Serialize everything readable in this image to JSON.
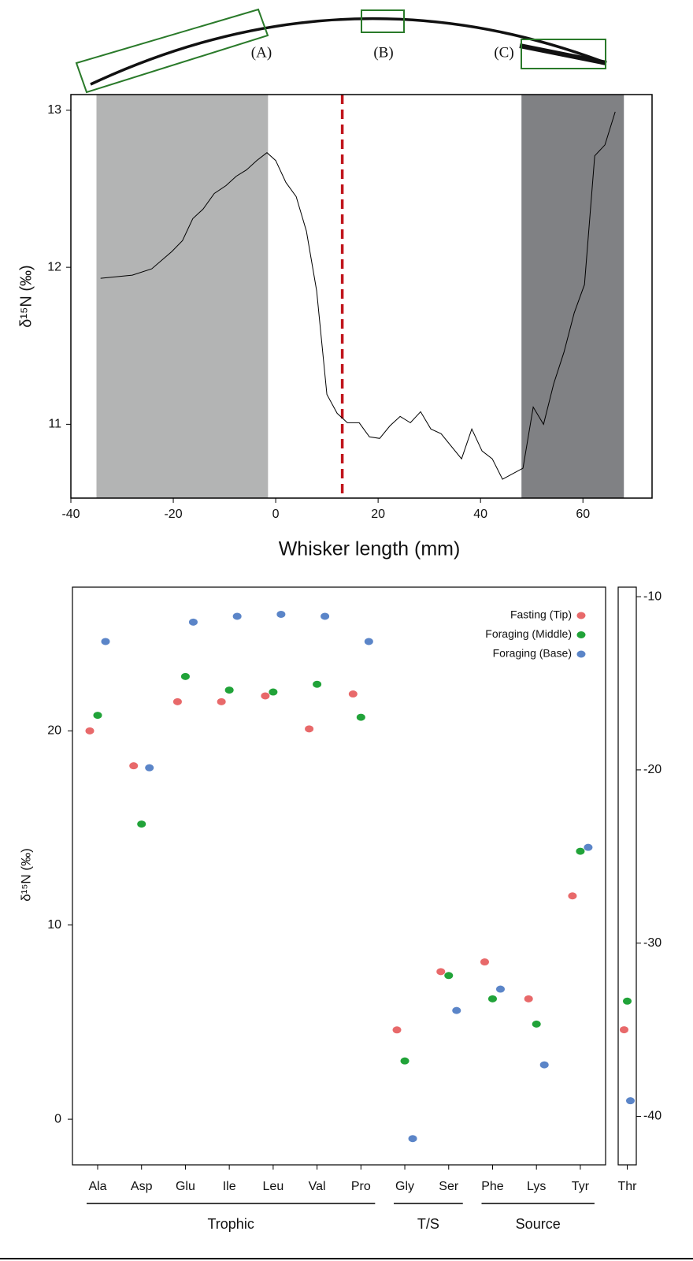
{
  "chart_data": [
    {
      "type": "line",
      "annotations": [
        "(A)",
        "(B)",
        "(C)"
      ],
      "xlabel": "Whisker length (mm)",
      "ylabel": "δ¹⁵N (‰)",
      "x": [
        -34.2,
        -28,
        -24.2,
        -20.3,
        -18.2,
        -16.2,
        -14.2,
        -12,
        -9.7,
        -7.7,
        -5.7,
        -3.7,
        -1.7,
        0,
        2,
        4,
        6,
        8,
        10,
        12,
        14,
        16.3,
        18.3,
        20.3,
        22.3,
        24.3,
        26.3,
        28.3,
        30.3,
        32.3,
        36.3,
        38.3,
        40.3,
        42.3,
        44.3,
        48.3,
        50.3,
        52.3,
        54.3,
        56.3,
        58.3,
        60.3,
        62.3,
        64.3,
        66.3
      ],
      "values": [
        11.93,
        11.95,
        11.99,
        12.1,
        12.17,
        12.31,
        12.37,
        12.47,
        12.52,
        12.58,
        12.62,
        12.68,
        12.73,
        12.68,
        12.54,
        12.45,
        12.23,
        11.85,
        11.19,
        11.07,
        11.01,
        11.01,
        10.92,
        10.91,
        10.99,
        11.05,
        11.01,
        11.08,
        10.97,
        10.94,
        10.78,
        10.97,
        10.83,
        10.78,
        10.65,
        10.72,
        11.11,
        11.0,
        11.26,
        11.46,
        11.71,
        11.89,
        12.71,
        12.78,
        12.99
      ],
      "color": "#000000",
      "xlim": [
        -40,
        73.5
      ],
      "xticks": [
        -40,
        -20,
        0,
        20,
        40,
        60
      ],
      "ylim": [
        10.53,
        13.1
      ],
      "yticks": [
        11,
        12,
        13
      ],
      "shaded_regions": [
        {
          "x": [
            -35,
            -1.5
          ],
          "color": "#b3b4b4"
        },
        {
          "x": [
            48,
            68
          ],
          "color": "#808184"
        }
      ],
      "reference_line": {
        "x": 13,
        "color": "#c0141b",
        "dashed": true
      }
    },
    {
      "type": "dot",
      "ylabel": "δ¹⁵N (‰)",
      "categories": [
        "Ala",
        "Asp",
        "Glu",
        "Ile",
        "Leu",
        "Val",
        "Pro",
        "Gly",
        "Ser",
        "Phe",
        "Lys",
        "Tyr",
        "Thr"
      ],
      "category_groups": [
        "Trophic",
        "Trophic",
        "Trophic",
        "Trophic",
        "Trophic",
        "Trophic",
        "Trophic",
        "T/S",
        "T/S",
        "Source",
        "Source",
        "Source",
        null
      ],
      "y2_categories": [
        "Thr"
      ],
      "series": [
        {
          "name": "Fasting (Tip)",
          "color": "#e8696a",
          "values": [
            20.0,
            18.2,
            21.5,
            21.5,
            21.8,
            20.1,
            21.9,
            4.6,
            7.6,
            8.1,
            6.2,
            11.5,
            -35.0
          ]
        },
        {
          "name": "Foraging (Middle)",
          "color": "#21a339",
          "values": [
            20.8,
            15.2,
            22.8,
            22.1,
            22.0,
            22.4,
            20.7,
            3.0,
            7.4,
            6.2,
            4.9,
            13.8,
            -33.35
          ]
        },
        {
          "name": "Foraging (Base)",
          "color": "#5b85c8",
          "values": [
            24.6,
            18.1,
            25.6,
            25.9,
            26.0,
            25.9,
            24.6,
            -1.0,
            5.6,
            6.7,
            2.8,
            14.0,
            -39.1
          ]
        }
      ],
      "ylim": [
        -2.35,
        27.4
      ],
      "yticks": [
        0,
        10,
        20
      ],
      "y2lim": [
        -42.8,
        -9.45
      ],
      "y2ticks": [
        -10,
        -20,
        -30,
        -40
      ],
      "legend": "top-right"
    }
  ]
}
